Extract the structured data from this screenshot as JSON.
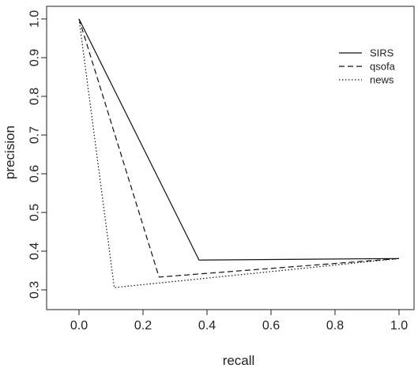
{
  "chart_data": {
    "type": "line",
    "title": "",
    "xlabel": "recall",
    "ylabel": "precision",
    "xlim": [
      0.0,
      1.0
    ],
    "ylim": [
      0.3,
      1.0
    ],
    "x_ticks": [
      "0.0",
      "0.2",
      "0.4",
      "0.6",
      "0.8",
      "1.0"
    ],
    "y_ticks": [
      "0.3",
      "0.4",
      "0.5",
      "0.6",
      "0.7",
      "0.8",
      "0.9",
      "1.0"
    ],
    "grid": false,
    "legend_position": "top-right",
    "series": [
      {
        "name": "SIRS",
        "line_style": "solid",
        "x": [
          0.0,
          0.375,
          1.0
        ],
        "y": [
          1.0,
          0.377,
          0.381
        ]
      },
      {
        "name": "qsofa",
        "line_style": "dashed",
        "x": [
          0.0,
          0.25,
          1.0
        ],
        "y": [
          1.0,
          0.333,
          0.381
        ]
      },
      {
        "name": "news",
        "line_style": "dotted",
        "x": [
          0.0,
          0.11,
          1.0
        ],
        "y": [
          1.0,
          0.306,
          0.381
        ]
      }
    ]
  }
}
